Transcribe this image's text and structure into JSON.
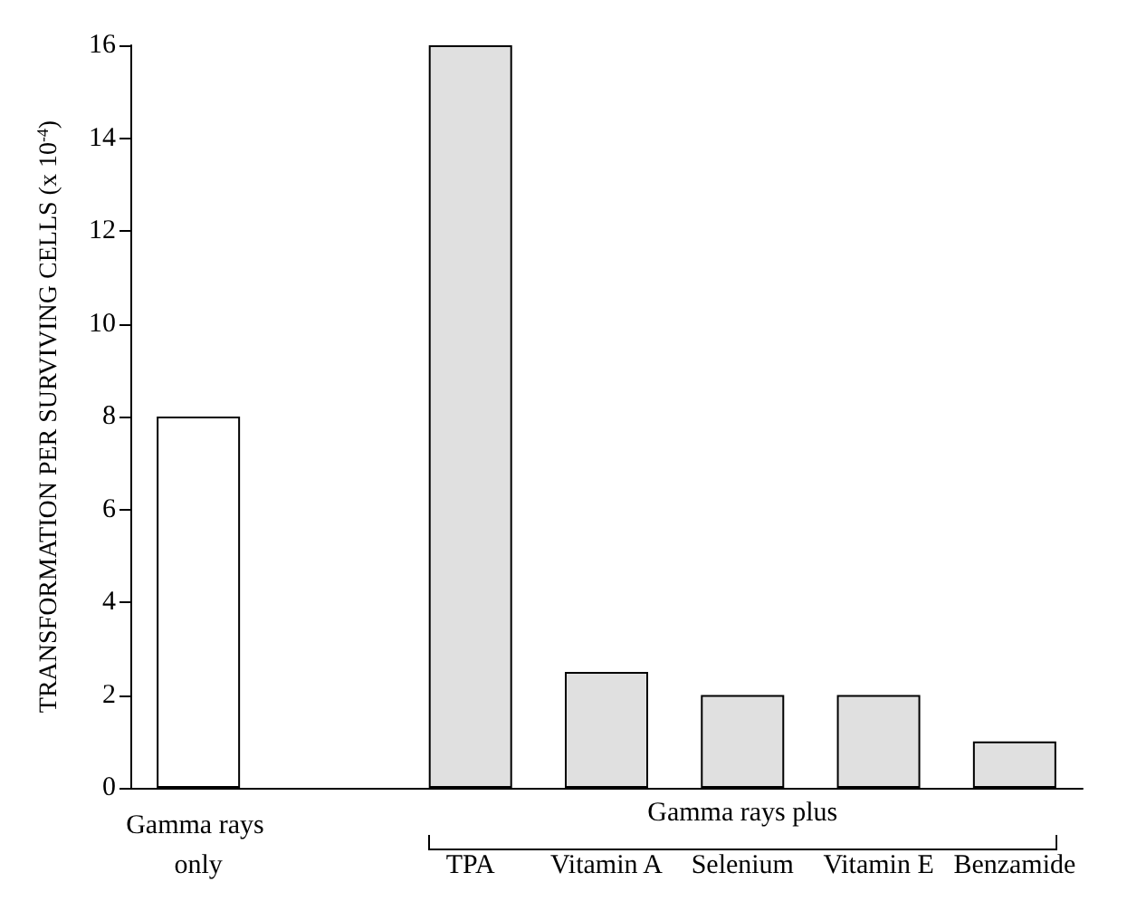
{
  "chart_data": {
    "type": "bar",
    "ylabel": "TRANSFORMATION PER SURVIVING CELLS (x 10$^{-4}$)",
    "categories": [
      "Gamma rays only",
      null,
      "TPA",
      "Vitamin A",
      "Selenium",
      "Vitamin E",
      "Benzamide"
    ],
    "values": [
      8,
      null,
      16,
      2.5,
      2,
      2,
      1
    ],
    "colors": [
      "#ffffff",
      null,
      "#e0e0e0",
      "#e0e0e0",
      "#e0e0e0",
      "#e0e0e0",
      "#e0e0e0"
    ],
    "ylim": [
      0,
      16
    ],
    "yticks": [
      0,
      2,
      4,
      6,
      8,
      10,
      12,
      14,
      16
    ],
    "annotations": [
      "Gamma rays plus"
    ],
    "grid": false
  }
}
